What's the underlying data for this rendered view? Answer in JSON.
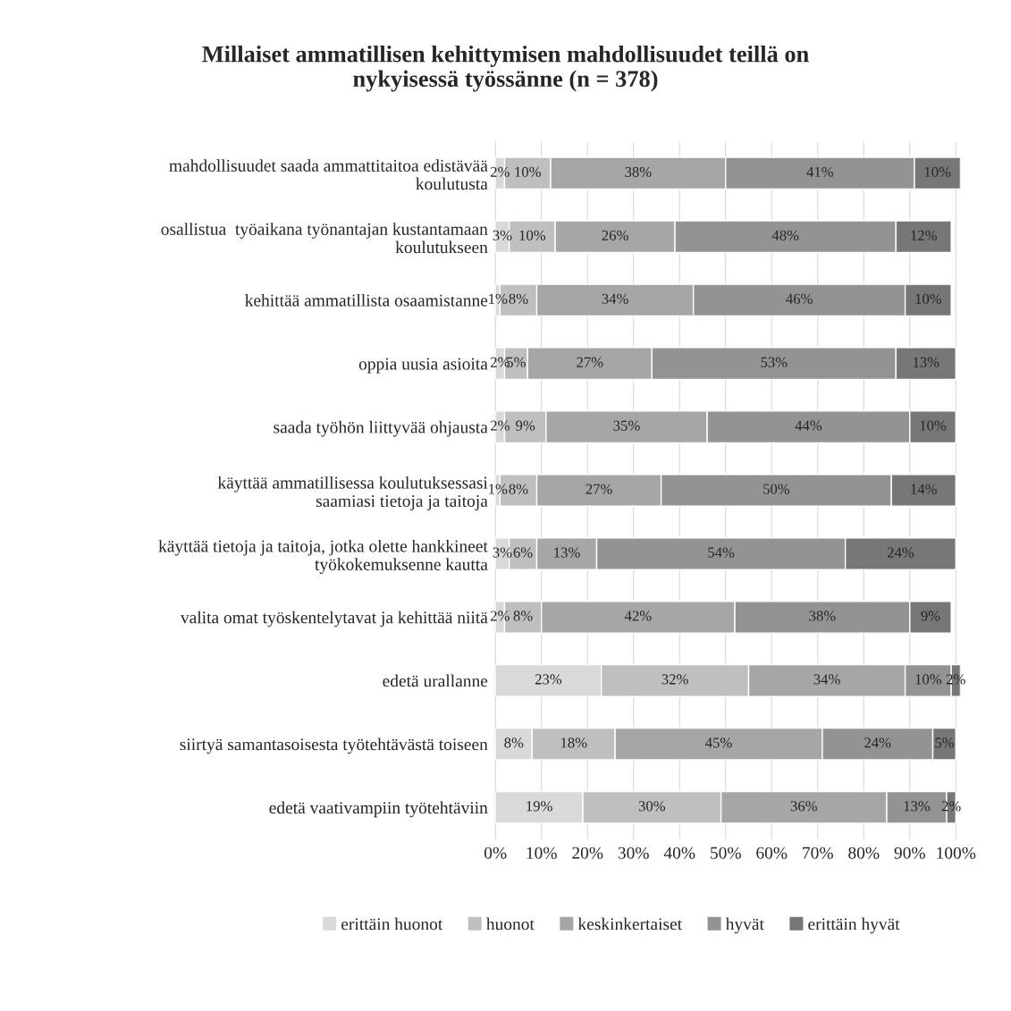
{
  "chart_data": {
    "type": "bar",
    "orientation": "horizontal",
    "stacked": true,
    "title": "Millaiset ammatillisen kehittymisen mahdollisuudet teillä on\nnykyisessä työssänne (n = 378)",
    "categories": [
      "mahdollisuudet saada ammattitaitoa edistävää\nkoulutusta",
      "osallistua  työaikana työnantajan kustantamaan\nkoulutukseen",
      "kehittää ammatillista osaamistanne",
      "oppia uusia asioita",
      "saada työhön liittyvää ohjausta",
      "käyttää ammatillisessa koulutuksessasi\nsaamiasi tietoja ja taitoja",
      "käyttää tietoja ja taitoja, jotka olette hankkineet\ntyökokemuksenne kautta",
      "valita omat työskentelytavat ja kehittää niitä",
      "edetä urallanne",
      "siirtyä samantasoisesta työtehtävästä toiseen",
      "edetä vaativampiin työtehtäviin"
    ],
    "series": [
      {
        "name": "erittäin huonot",
        "color": "#d9d9d9",
        "values": [
          2,
          3,
          1,
          2,
          2,
          1,
          3,
          2,
          23,
          8,
          19
        ],
        "value_labels": [
          "2%",
          "3%",
          "1%",
          "2%",
          "2%",
          "1%",
          "3%",
          "2%",
          "23%",
          "8%",
          "19%"
        ]
      },
      {
        "name": "huonot",
        "color": "#bfbfbf",
        "values": [
          10,
          10,
          8,
          5,
          9,
          8,
          6,
          8,
          32,
          18,
          30
        ],
        "value_labels": [
          "10%",
          "10%",
          "8%",
          "5%",
          "9%",
          "8%",
          "6%",
          "8%",
          "32%",
          "18%",
          "30%"
        ]
      },
      {
        "name": "keskinkertaiset",
        "color": "#a6a6a6",
        "values": [
          38,
          26,
          34,
          27,
          35,
          27,
          13,
          42,
          34,
          45,
          36
        ],
        "value_labels": [
          "38%",
          "26%",
          "34%",
          "27%",
          "35%",
          "27%",
          "13%",
          "42%",
          "34%",
          "45%",
          "36%"
        ]
      },
      {
        "name": "hyvät",
        "color": "#939393",
        "values": [
          41,
          48,
          46,
          53,
          44,
          50,
          54,
          38,
          10,
          24,
          13
        ],
        "value_labels": [
          "41%",
          "48%",
          "46%",
          "53%",
          "44%",
          "50%",
          "54%",
          "38%",
          "10%",
          "24%",
          "13%"
        ]
      },
      {
        "name": "erittäin hyvät",
        "color": "#777777",
        "values": [
          10,
          12,
          10,
          13,
          10,
          14,
          24,
          9,
          2,
          5,
          2
        ],
        "value_labels": [
          "10%",
          "12%",
          "10%",
          "13%",
          "10%",
          "14%",
          "24%",
          "9%",
          "2%",
          "5%",
          "2%"
        ]
      }
    ],
    "xlim": [
      0,
      101
    ],
    "xticks": [
      {
        "value": 0,
        "label": "0%"
      },
      {
        "value": 10,
        "label": "10%"
      },
      {
        "value": 20,
        "label": "20%"
      },
      {
        "value": 30,
        "label": "30%"
      },
      {
        "value": 40,
        "label": "40%"
      },
      {
        "value": 50,
        "label": "50%"
      },
      {
        "value": 60,
        "label": "60%"
      },
      {
        "value": 70,
        "label": "70%"
      },
      {
        "value": 80,
        "label": "80%"
      },
      {
        "value": 90,
        "label": "90%"
      },
      {
        "value": 100,
        "label": "100%"
      }
    ],
    "grid": "x",
    "legend": "bottom"
  }
}
